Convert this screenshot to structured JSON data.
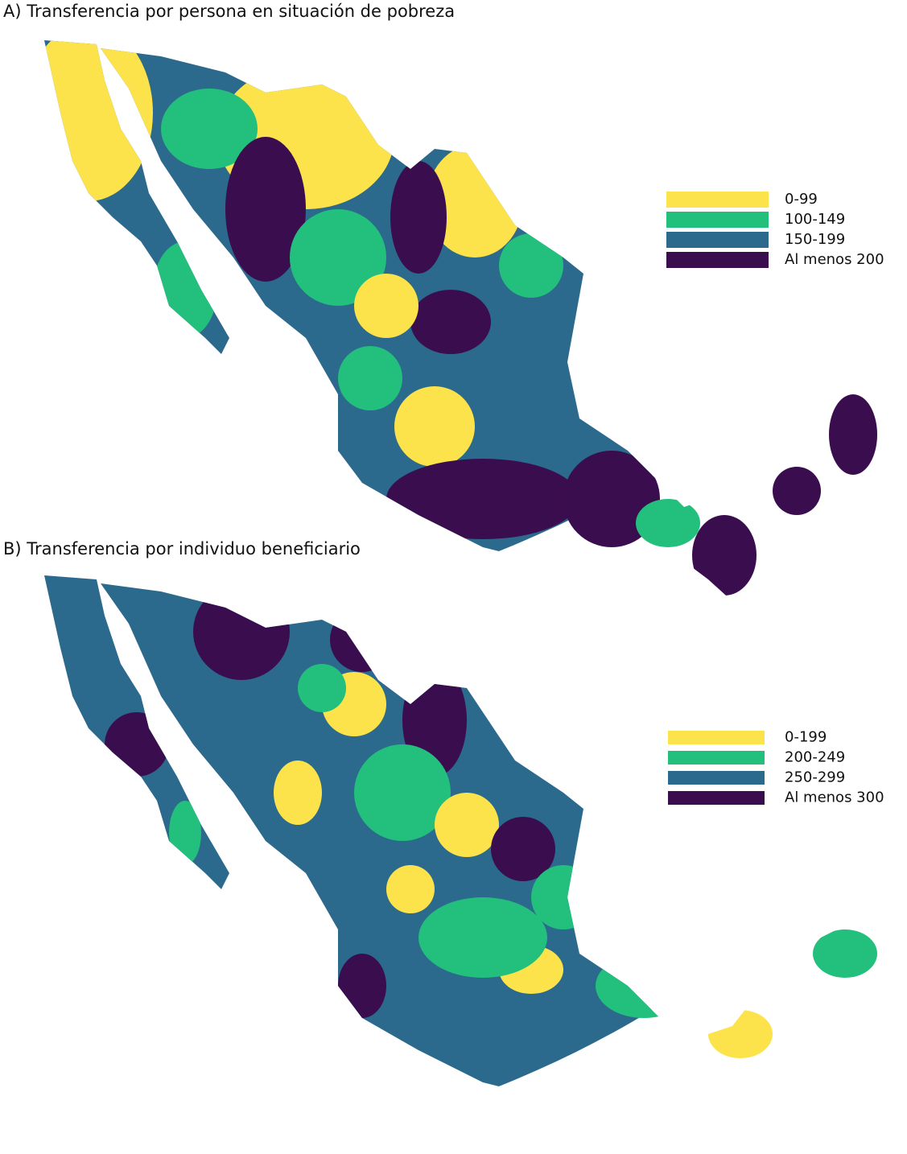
{
  "panels": [
    {
      "title": "A) Transferencia por persona en situación de pobreza",
      "legend": [
        {
          "label": "0-99",
          "color": "#fde34b"
        },
        {
          "label": "100-149",
          "color": "#23bf7c"
        },
        {
          "label": "150-199",
          "color": "#2b6a8d"
        },
        {
          "label": "Al menos 200",
          "color": "#3a0d4f"
        }
      ]
    },
    {
      "title": "B) Transferencia por individuo beneficiario",
      "legend": [
        {
          "label": "0-199",
          "color": "#fde34b"
        },
        {
          "label": "200-249",
          "color": "#23bf7c"
        },
        {
          "label": "250-299",
          "color": "#2b6a8d"
        },
        {
          "label": "Al menos 300",
          "color": "#3a0d4f"
        }
      ]
    }
  ]
}
